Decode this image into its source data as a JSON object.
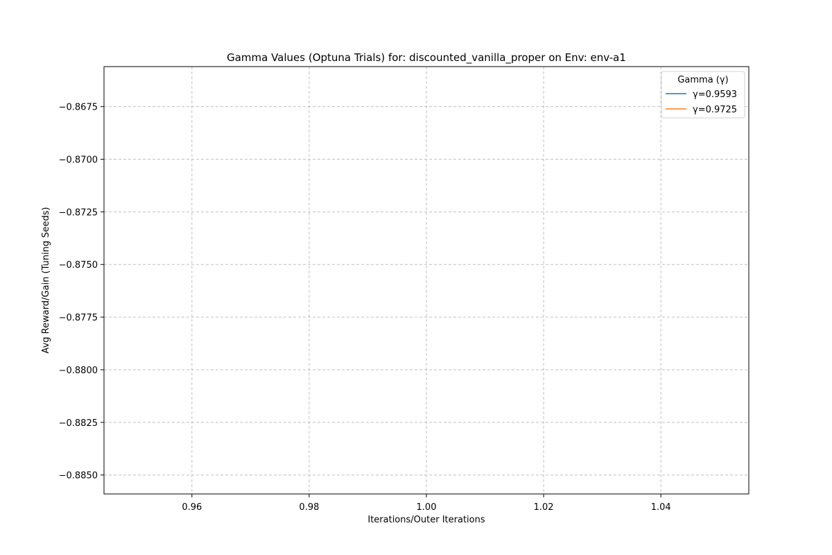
{
  "chart_data": {
    "type": "line",
    "title": "Gamma Values (Optuna Trials) for: discounted_vanilla_proper on Env: env-a1",
    "xlabel": "Iterations/Outer Iterations",
    "ylabel": "Avg Reward/Gain (Tuning Seeds)",
    "xlim": [
      0.945,
      1.055
    ],
    "ylim": [
      -0.8859,
      -0.8656
    ],
    "x_ticks": [
      0.96,
      0.98,
      1.0,
      1.02,
      1.04
    ],
    "x_tick_labels": [
      "0.96",
      "0.98",
      "1.00",
      "1.02",
      "1.04"
    ],
    "y_ticks": [
      -0.8675,
      -0.87,
      -0.8725,
      -0.875,
      -0.8775,
      -0.88,
      -0.8825,
      -0.885
    ],
    "y_tick_labels": [
      "−0.8675",
      "−0.8700",
      "−0.8725",
      "−0.8750",
      "−0.8775",
      "−0.8800",
      "−0.8825",
      "−0.8850"
    ],
    "grid": true,
    "legend": {
      "title": "Gamma (γ)",
      "placement": "top-right"
    },
    "series": [
      {
        "name": "γ=0.9593",
        "color": "#1f77b4",
        "x": [],
        "y": []
      },
      {
        "name": "γ=0.9725",
        "color": "#ff7f0e",
        "x": [],
        "y": []
      }
    ]
  }
}
